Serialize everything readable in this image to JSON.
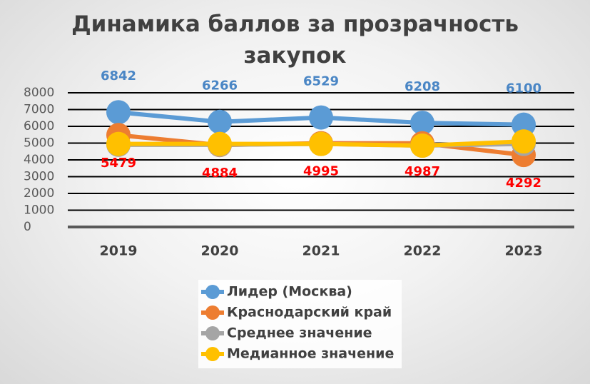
{
  "chart_data": {
    "type": "line",
    "title": "Динамика баллов за прозрачность закупок",
    "categories": [
      "2019",
      "2020",
      "2021",
      "2022",
      "2023"
    ],
    "series": [
      {
        "name": "Лидер (Москва)",
        "color": "#5b9bd5",
        "values": [
          6842,
          6266,
          6529,
          6208,
          6100
        ],
        "data_labels": true,
        "label_color": "#4a86c5",
        "label_side": "above"
      },
      {
        "name": "Краснодарский край",
        "color": "#ed7d31",
        "values": [
          5479,
          4884,
          4995,
          4987,
          4292
        ],
        "data_labels": true,
        "label_color": "#ff0000",
        "label_side": "below"
      },
      {
        "name": "Среднее значение",
        "color": "#a5a5a5",
        "values": [
          4900,
          4900,
          4950,
          4850,
          4950
        ],
        "data_labels": false
      },
      {
        "name": "Медианное значение",
        "color": "#ffc000",
        "values": [
          4950,
          4950,
          4950,
          4850,
          5100
        ],
        "data_labels": false
      }
    ],
    "ylim": [
      0,
      8000
    ],
    "yticks": [
      0,
      1000,
      2000,
      3000,
      4000,
      5000,
      6000,
      7000,
      8000
    ],
    "grid": true,
    "legend": "bottom"
  }
}
